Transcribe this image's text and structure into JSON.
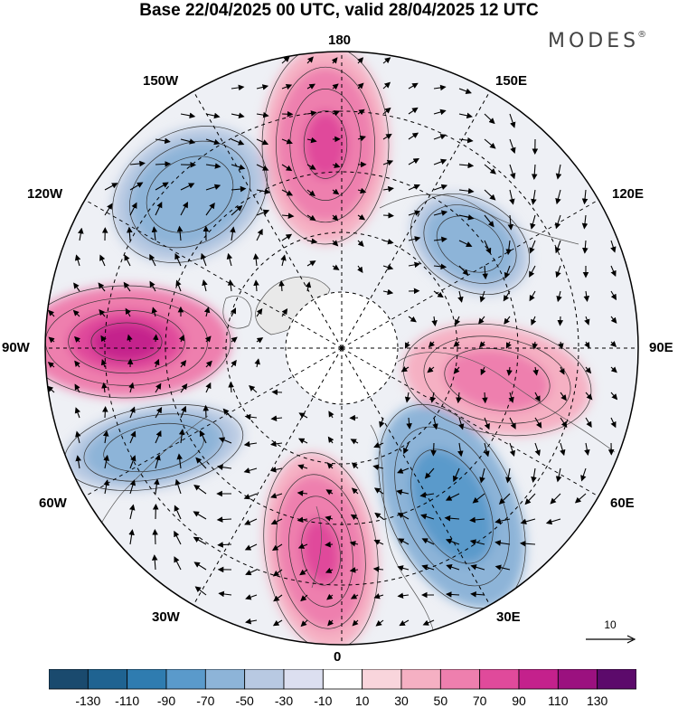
{
  "title": "Base 22/04/2025 00 UTC, valid 28/04/2025 12 UTC",
  "brand": {
    "name": "MODES",
    "mark": "®"
  },
  "longitude_labels": {
    "top": "180",
    "bottom": "0",
    "left": "90W",
    "right": "90E",
    "upper_left_outer": "120W",
    "upper_left_inner": "150W",
    "upper_right_inner": "150E",
    "upper_right_outer": "120E",
    "lower_left_outer": "60W",
    "lower_left_inner": "30W",
    "lower_right_inner": "30E",
    "lower_right_outer": "60E"
  },
  "reference_vector": {
    "label": "10"
  },
  "colorbar": {
    "ticks": [
      "-130",
      "-110",
      "-90",
      "-70",
      "-50",
      "-30",
      "-10",
      "10",
      "30",
      "50",
      "70",
      "90",
      "110",
      "130"
    ],
    "colors": [
      "#1a4a6e",
      "#1f6391",
      "#2f7cb0",
      "#5a9acb",
      "#8db4d8",
      "#b8c9e2",
      "#dcdff0",
      "#ffffff",
      "#f9d5dc",
      "#f5b0c3",
      "#ee7fae",
      "#e04a9b",
      "#c4218c",
      "#9b117f",
      "#5c0a6b"
    ]
  },
  "anomaly_centers": [
    {
      "sign": "positive",
      "level": 110,
      "region": "90W"
    },
    {
      "sign": "positive",
      "level": 90,
      "region": "180"
    },
    {
      "sign": "positive",
      "level": 90,
      "region": "0"
    },
    {
      "sign": "positive",
      "level": 70,
      "region": "90E"
    },
    {
      "sign": "negative",
      "level": -70,
      "region": "30E"
    },
    {
      "sign": "negative",
      "level": -50,
      "region": "120W"
    },
    {
      "sign": "negative",
      "level": -50,
      "region": "60W"
    },
    {
      "sign": "negative",
      "level": -50,
      "region": "150E"
    }
  ]
}
